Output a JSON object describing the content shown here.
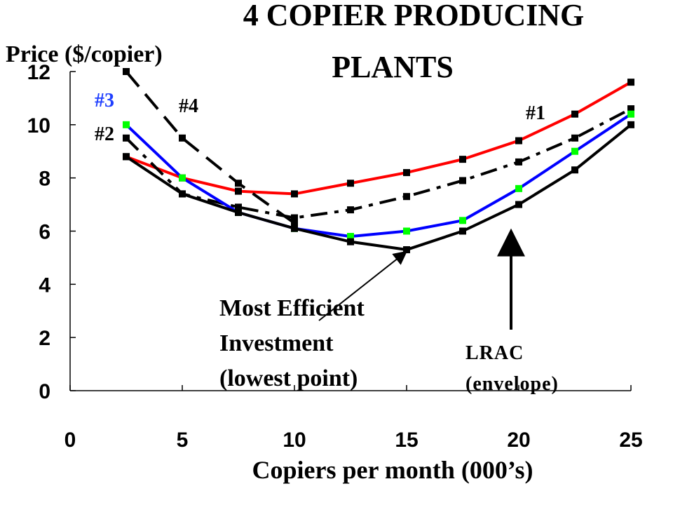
{
  "chart_data": {
    "type": "line",
    "title": "4 COPIER PRODUCING PLANTS",
    "ylabel": "Price ($/copier)",
    "xlabel": "Copiers per month (000’s)",
    "xlim": [
      0,
      25
    ],
    "ylim": [
      0,
      12
    ],
    "x_ticks": [
      "0",
      "5",
      "10",
      "15",
      "20",
      "25"
    ],
    "y_ticks": [
      "0",
      "2",
      "4",
      "6",
      "8",
      "10",
      "12"
    ],
    "grid": false,
    "series": [
      {
        "name": "#1",
        "color": "#ff0000",
        "dash": "solid",
        "marker_color": "#000000",
        "points": [
          [
            2.5,
            8.8
          ],
          [
            5,
            8.0
          ],
          [
            7.5,
            7.5
          ],
          [
            10,
            7.4
          ],
          [
            12.5,
            7.8
          ],
          [
            15,
            8.2
          ],
          [
            17.5,
            8.7
          ],
          [
            20,
            9.4
          ],
          [
            22.5,
            10.4
          ],
          [
            25,
            11.6
          ]
        ]
      },
      {
        "name": "#2",
        "color": "#000000",
        "dash": "dashdot",
        "marker_color": "#000000",
        "points": [
          [
            2.5,
            9.5
          ],
          [
            5,
            7.4
          ],
          [
            7.5,
            6.9
          ],
          [
            10,
            6.5
          ],
          [
            12.5,
            6.8
          ],
          [
            15,
            7.3
          ],
          [
            17.5,
            7.9
          ],
          [
            20,
            8.6
          ],
          [
            22.5,
            9.5
          ],
          [
            25,
            10.6
          ]
        ]
      },
      {
        "name": "#3",
        "color": "#0000ff",
        "dash": "solid",
        "marker_color": "#00ff00",
        "points": [
          [
            2.5,
            10.0
          ],
          [
            5,
            8.0
          ],
          [
            7.5,
            6.7
          ],
          [
            10,
            6.1
          ],
          [
            12.5,
            5.8
          ],
          [
            15,
            6.0
          ],
          [
            17.5,
            6.4
          ],
          [
            20,
            7.6
          ],
          [
            22.5,
            9.0
          ],
          [
            25,
            10.4
          ]
        ]
      },
      {
        "name": "#4",
        "color": "#000000",
        "dash": "longdash",
        "marker_color": "#000000",
        "points": [
          [
            2.5,
            12.0
          ],
          [
            5,
            9.5
          ],
          [
            7.5,
            7.8
          ],
          [
            10,
            6.3
          ]
        ]
      },
      {
        "name": "LRAC",
        "color": "#000000",
        "dash": "solid",
        "marker_color": "#000000",
        "points": [
          [
            2.5,
            8.8
          ],
          [
            5,
            7.4
          ],
          [
            7.5,
            6.7
          ],
          [
            10,
            6.1
          ],
          [
            12.5,
            5.6
          ],
          [
            15,
            5.3
          ],
          [
            17.5,
            6.0
          ],
          [
            20,
            7.0
          ],
          [
            22.5,
            8.3
          ],
          [
            25,
            10.0
          ]
        ]
      }
    ],
    "annotations": {
      "plant1": "#1",
      "plant2": "#2",
      "plant3": "#3",
      "plant4": "#4",
      "efficient_line1": "Most Efficient",
      "efficient_line2": "Investment",
      "efficient_line3": "(lowest point)",
      "lrac_line1": "LRAC",
      "lrac_line2": "(envelope)"
    },
    "arrow_targets": {
      "efficient": [
        15,
        5.3
      ],
      "lrac": [
        20,
        7.0
      ]
    }
  }
}
